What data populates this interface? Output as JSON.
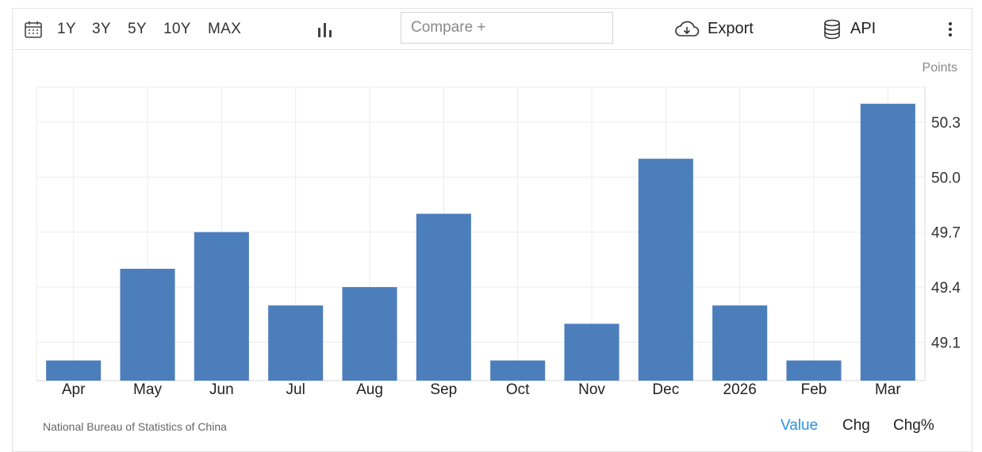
{
  "toolbar": {
    "icons": {
      "calendar": "calendar-icon",
      "chart_type": "bar-chart-icon",
      "export": "cloud-download-icon",
      "api": "database-icon",
      "more": "vertical-dots-icon"
    },
    "ranges": [
      "1Y",
      "3Y",
      "5Y",
      "10Y",
      "MAX"
    ],
    "compare_placeholder": "Compare +",
    "export_label": "Export",
    "api_label": "API"
  },
  "colors": {
    "bar": "#4d7ebc",
    "grid": "#ececec",
    "active_tab": "#2f8fe0"
  },
  "chart_data": {
    "type": "bar",
    "ylabel": "Points",
    "categories": [
      "Apr",
      "May",
      "Jun",
      "Jul",
      "Aug",
      "Sep",
      "Oct",
      "Nov",
      "Dec",
      "2026",
      "Feb",
      "Mar"
    ],
    "values": [
      49.0,
      49.5,
      49.7,
      49.3,
      49.4,
      49.8,
      49.0,
      49.2,
      50.1,
      49.3,
      49.0,
      50.4
    ],
    "yticks": [
      "50.3",
      "50.0",
      "49.7",
      "49.4",
      "49.1"
    ],
    "ylim": [
      48.89,
      50.49
    ],
    "grid": true
  },
  "footer": {
    "source": "National Bureau of Statistics of China",
    "tabs": [
      "Value",
      "Chg",
      "Chg%"
    ]
  }
}
